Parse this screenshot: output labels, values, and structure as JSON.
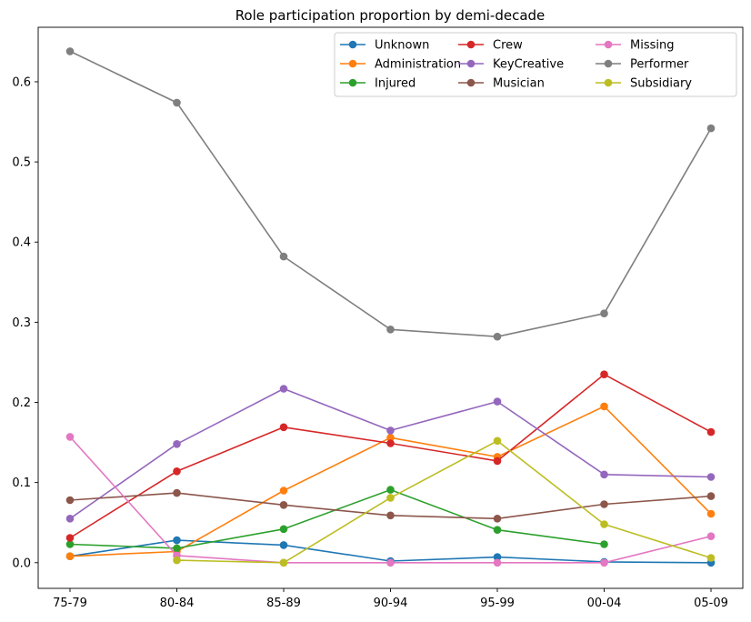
{
  "chart_data": {
    "type": "line",
    "title": "Role participation proportion by demi-decade",
    "xlabel": "",
    "ylabel": "",
    "categories": [
      "75-79",
      "80-84",
      "85-89",
      "90-94",
      "95-99",
      "00-04",
      "05-09"
    ],
    "ylim": [
      -0.032,
      0.668
    ],
    "yticks": [
      0.0,
      0.1,
      0.2,
      0.3,
      0.4,
      0.5,
      0.6
    ],
    "ytick_labels": [
      "0.0",
      "0.1",
      "0.2",
      "0.3",
      "0.4",
      "0.5",
      "0.6"
    ],
    "grid": false,
    "legend_position": "top-right",
    "legend_columns": 3,
    "series": [
      {
        "name": "Unknown",
        "color": "#1f77b4",
        "values": [
          0.008,
          0.028,
          0.022,
          0.002,
          0.007,
          0.001,
          0.0
        ]
      },
      {
        "name": "Administration",
        "color": "#ff7f0e",
        "values": [
          0.008,
          0.014,
          0.09,
          0.156,
          0.132,
          0.195,
          0.061
        ]
      },
      {
        "name": "Injured",
        "color": "#2ca02c",
        "values": [
          0.023,
          0.018,
          0.042,
          0.091,
          0.041,
          0.023,
          null
        ]
      },
      {
        "name": "Crew",
        "color": "#d62728",
        "values": [
          0.031,
          0.114,
          0.169,
          0.149,
          0.127,
          0.235,
          0.163
        ]
      },
      {
        "name": "KeyCreative",
        "color": "#9467bd",
        "values": [
          0.055,
          0.148,
          0.217,
          0.165,
          0.201,
          0.11,
          0.107
        ]
      },
      {
        "name": "Musician",
        "color": "#8c564b",
        "values": [
          0.078,
          0.087,
          0.072,
          0.059,
          0.055,
          0.073,
          0.083
        ]
      },
      {
        "name": "Missing",
        "color": "#e377c2",
        "values": [
          0.157,
          0.009,
          0.0,
          0.0,
          0.0,
          0.0,
          0.033
        ]
      },
      {
        "name": "Performer",
        "color": "#7f7f7f",
        "values": [
          0.638,
          0.574,
          0.382,
          0.291,
          0.282,
          0.311,
          0.542
        ]
      },
      {
        "name": "Subsidiary",
        "color": "#bcbd22",
        "values": [
          null,
          0.003,
          0.0,
          0.081,
          0.152,
          0.048,
          0.006
        ]
      }
    ]
  }
}
